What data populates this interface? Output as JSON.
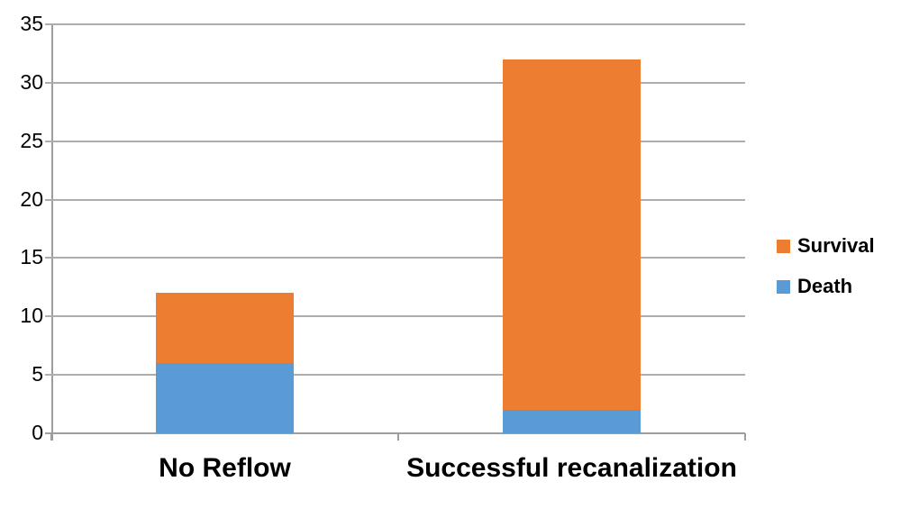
{
  "chart_data": {
    "type": "bar",
    "stacked": true,
    "title": "",
    "xlabel": "",
    "ylabel": "",
    "categories": [
      "No Reflow",
      "Successful recanalization"
    ],
    "series": [
      {
        "name": "Death",
        "color": "#5B9BD5",
        "values": [
          6,
          2
        ]
      },
      {
        "name": "Survival",
        "color": "#ED7D31",
        "values": [
          6,
          30
        ]
      }
    ],
    "totals": [
      12,
      32
    ],
    "y_ticks": [
      0,
      5,
      10,
      15,
      20,
      25,
      30,
      35
    ],
    "ylim": [
      0,
      35
    ],
    "grid": true,
    "legend": {
      "position": "right",
      "entries": [
        "Survival",
        "Death"
      ]
    },
    "colors": {
      "gridline": "#ADADAD",
      "axis": "#9D9D9D",
      "text": "#000000",
      "background": "#FFFFFF"
    }
  }
}
